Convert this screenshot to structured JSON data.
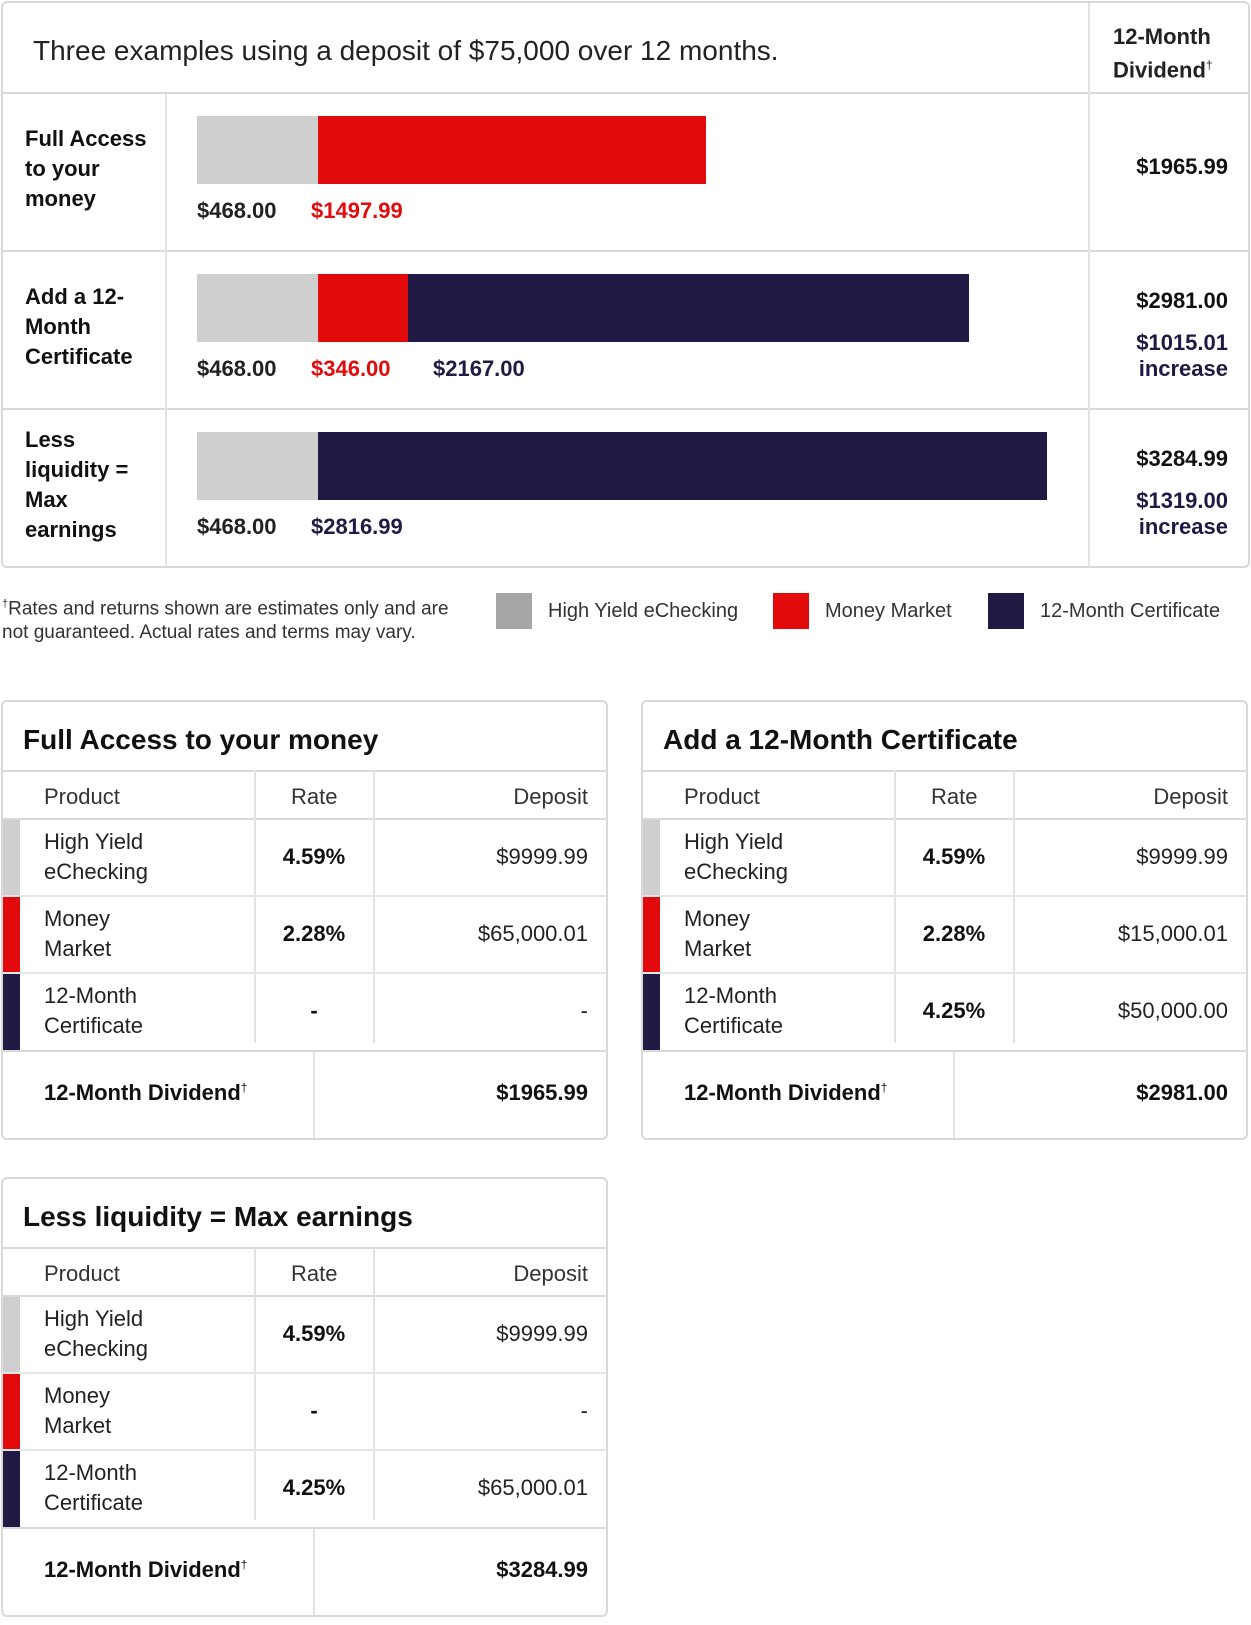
{
  "chart": {
    "title": "Three examples using a deposit of $75,000 over 12 months.",
    "dividend_header_line1": "12-Month",
    "dividend_header_line2": "Dividend",
    "dagger": "†",
    "rows": [
      {
        "label_lines": [
          "Full Access",
          "to your",
          "money"
        ],
        "values": [
          "$468.00",
          "$1497.99"
        ],
        "dividend": "$1965.99",
        "increase_value": "",
        "increase_label": ""
      },
      {
        "label_lines": [
          "Add a 12-",
          "Month",
          "Certificate"
        ],
        "values": [
          "$468.00",
          "$346.00",
          "$2167.00"
        ],
        "dividend": "$2981.00",
        "increase_value": "$1015.01",
        "increase_label": "increase"
      },
      {
        "label_lines": [
          "Less",
          "liquidity =",
          "Max",
          "earnings"
        ],
        "values": [
          "$468.00",
          "$2816.99"
        ],
        "dividend": "$3284.99",
        "increase_value": "$1319.00",
        "increase_label": "increase"
      }
    ]
  },
  "footnote": {
    "dagger": "†",
    "line1": "Rates and returns shown are estimates only and are",
    "line2": "not guaranteed. Actual rates and terms may vary."
  },
  "legend": [
    {
      "label": "High Yield eChecking",
      "color": "#a6a6a6"
    },
    {
      "label": "Money Market",
      "color": "#e20a0a"
    },
    {
      "label": "12-Month Certificate",
      "color": "#201a45"
    }
  ],
  "cards": [
    {
      "title": "Full Access to your money",
      "headers": {
        "product": "Product",
        "rate": "Rate",
        "deposit": "Deposit"
      },
      "rows": [
        {
          "product_line1": "High Yield",
          "product_line2": "eChecking",
          "rate": "4.59%",
          "deposit": "$9999.99"
        },
        {
          "product_line1": "Money",
          "product_line2": "Market",
          "rate": "2.28%",
          "deposit": "$65,000.01"
        },
        {
          "product_line1": "12-Month",
          "product_line2": "Certificate",
          "rate": "-",
          "deposit": "-"
        }
      ],
      "total_label": "12-Month Dividend",
      "total_value": "$1965.99"
    },
    {
      "title": "Add a 12-Month Certificate",
      "headers": {
        "product": "Product",
        "rate": "Rate",
        "deposit": "Deposit"
      },
      "rows": [
        {
          "product_line1": "High Yield",
          "product_line2": "eChecking",
          "rate": "4.59%",
          "deposit": "$9999.99"
        },
        {
          "product_line1": "Money",
          "product_line2": "Market",
          "rate": "2.28%",
          "deposit": "$15,000.01"
        },
        {
          "product_line1": "12-Month",
          "product_line2": "Certificate",
          "rate": "4.25%",
          "deposit": "$50,000.00"
        }
      ],
      "total_label": "12-Month Dividend",
      "total_value": "$2981.00"
    },
    {
      "title": "Less liquidity = Max earnings",
      "headers": {
        "product": "Product",
        "rate": "Rate",
        "deposit": "Deposit"
      },
      "rows": [
        {
          "product_line1": "High Yield",
          "product_line2": "eChecking",
          "rate": "4.59%",
          "deposit": "$9999.99"
        },
        {
          "product_line1": "Money",
          "product_line2": "Market",
          "rate": "-",
          "deposit": "-"
        },
        {
          "product_line1": "12-Month",
          "product_line2": "Certificate",
          "rate": "4.25%",
          "deposit": "$65,000.01"
        }
      ],
      "total_label": "12-Month Dividend",
      "total_value": "$3284.99"
    }
  ],
  "chart_data": {
    "type": "bar",
    "orientation": "horizontal-stacked",
    "title": "Three examples using a deposit of $75,000 over 12 months.",
    "categories": [
      "Full Access to your money",
      "Add a 12-Month Certificate",
      "Less liquidity = Max earnings"
    ],
    "series": [
      {
        "name": "High Yield eChecking",
        "values": [
          468.0,
          468.0,
          468.0
        ],
        "color": "#cfcfcf"
      },
      {
        "name": "Money Market",
        "values": [
          1497.99,
          346.0,
          0
        ],
        "color": "#e20a0a"
      },
      {
        "name": "12-Month Certificate",
        "values": [
          0,
          2167.0,
          2816.99
        ],
        "color": "#201a45"
      }
    ],
    "totals": [
      1965.99,
      2981.0,
      3284.99
    ],
    "increases": [
      null,
      1015.01,
      1319.0
    ],
    "legend": "bottom"
  }
}
